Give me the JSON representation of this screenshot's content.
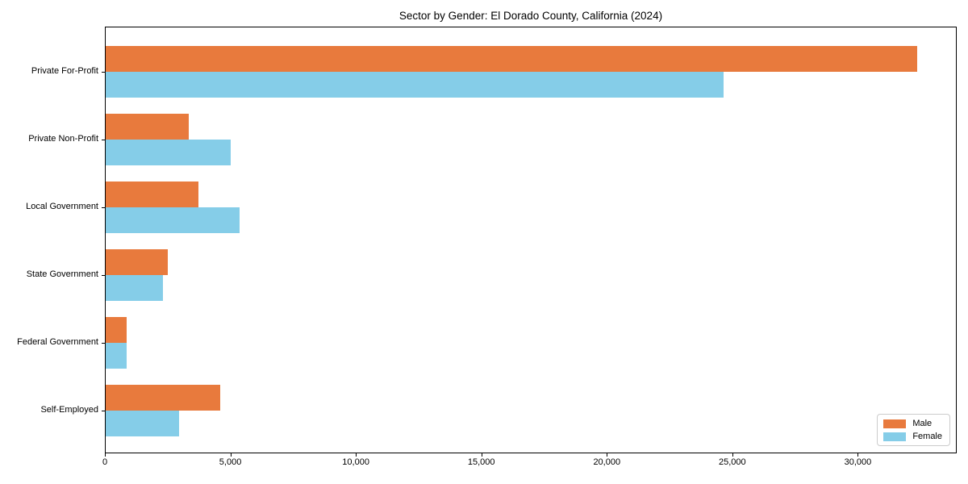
{
  "chart_data": {
    "type": "bar",
    "orientation": "horizontal",
    "title": "Sector by Gender: El Dorado County, California (2024)",
    "categories": [
      "Private For-Profit",
      "Private Non-Profit",
      "Local Government",
      "State Government",
      "Federal Government",
      "Self-Employed"
    ],
    "series": [
      {
        "name": "Male",
        "color": "#e87a3d",
        "values": [
          32320,
          3300,
          3710,
          2470,
          820,
          4570
        ]
      },
      {
        "name": "Female",
        "color": "#85cde8",
        "values": [
          24610,
          4990,
          5340,
          2270,
          840,
          2910
        ]
      }
    ],
    "xlim": [
      0,
      33940
    ],
    "xticks": [
      0,
      5000,
      10000,
      15000,
      20000,
      25000,
      30000
    ],
    "xtick_labels": [
      "0",
      "5,000",
      "10,000",
      "15,000",
      "20,000",
      "25,000",
      "30,000"
    ],
    "xlabel": "",
    "ylabel": "",
    "grid": false,
    "legend_position": "lower right"
  },
  "colors": {
    "axis": "#000000",
    "legend_border": "#cccccc",
    "background": "#ffffff"
  }
}
